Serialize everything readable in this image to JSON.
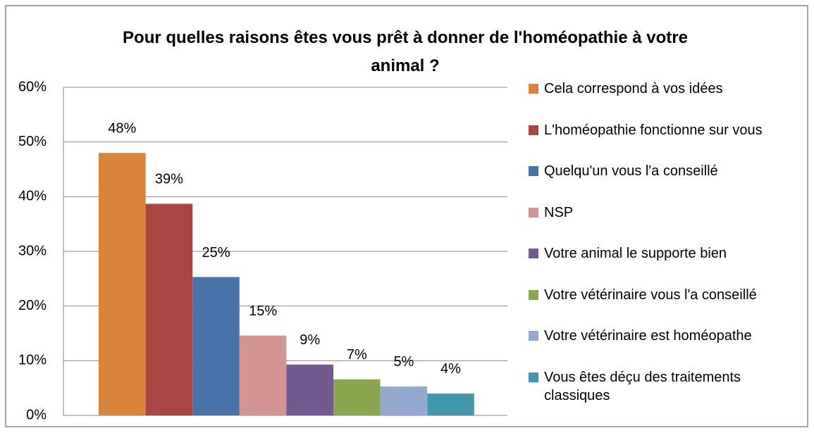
{
  "chart_data": {
    "type": "bar",
    "title": "Pour quelles raisons  êtes vous prêt à donner de l'homéopathie à votre animal ?",
    "categories": [
      null
    ],
    "series": [
      {
        "name": "Cela correspond à vos idées",
        "color": "#d9843a",
        "values": [
          48
        ],
        "value_labels": [
          "48%"
        ]
      },
      {
        "name": "L'homéopathie fonctionne sur vous",
        "color": "#a94542",
        "values": [
          38.7
        ],
        "value_labels": [
          "39%"
        ]
      },
      {
        "name": "Quelqu'un vous l'a conseillé",
        "color": "#4672a8",
        "values": [
          25.3
        ],
        "value_labels": [
          "25%"
        ]
      },
      {
        "name": "NSP",
        "color": "#d49492",
        "values": [
          14.6
        ],
        "value_labels": [
          "15%"
        ]
      },
      {
        "name": "Votre animal le supporte bien",
        "color": "#725a91",
        "values": [
          9.3
        ],
        "value_labels": [
          "9%"
        ]
      },
      {
        "name": "Votre vétérinaire vous l'a conseillé",
        "color": "#89a54e",
        "values": [
          6.6
        ],
        "value_labels": [
          "7%"
        ]
      },
      {
        "name": "Votre vétérinaire est homéopathe",
        "color": "#93a9d0",
        "values": [
          5.3
        ],
        "value_labels": [
          "5%"
        ]
      },
      {
        "name": "Vous êtes déçu des traitements classiques",
        "color": "#4198af",
        "values": [
          4.0
        ],
        "value_labels": [
          "4%"
        ]
      }
    ],
    "ylim": [
      0,
      60
    ],
    "yticks": [
      {
        "value": 0,
        "label": "0%"
      },
      {
        "value": 10,
        "label": "10%"
      },
      {
        "value": 20,
        "label": "20%"
      },
      {
        "value": 30,
        "label": "30%"
      },
      {
        "value": 40,
        "label": "40%"
      },
      {
        "value": 50,
        "label": "50%"
      },
      {
        "value": 60,
        "label": "60%"
      }
    ],
    "grid": true,
    "legend": "right"
  }
}
